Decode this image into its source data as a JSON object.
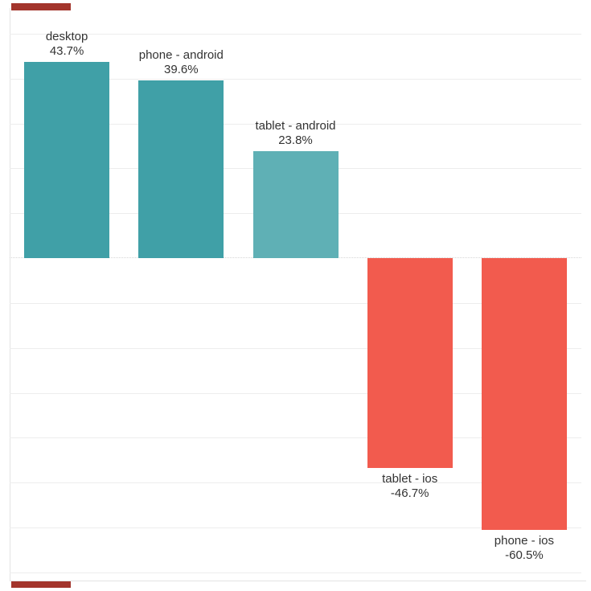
{
  "chart_data": {
    "type": "bar",
    "categories": [
      "desktop",
      "phone - android",
      "tablet - android",
      "tablet - ios",
      "phone - ios"
    ],
    "values": [
      43.7,
      39.6,
      23.8,
      -46.7,
      -60.5
    ],
    "value_labels": [
      "43.7%",
      "39.6%",
      "23.8%",
      "-46.7%",
      "-60.5%"
    ],
    "bar_colors": [
      "#40a0a7",
      "#40a0a7",
      "#5fb0b5",
      "#f25b4e",
      "#f25b4e"
    ],
    "positive_color": "#40a0a7",
    "positive_light_color": "#5fb0b5",
    "negative_color": "#f25b4e",
    "title": "",
    "xlabel": "",
    "ylabel": "",
    "ylim": [
      -72,
      55.7
    ],
    "gridline_step": 10,
    "grid": "on",
    "zero_line": "dotted",
    "legend": "none",
    "label_text_color": "#333333",
    "gridline_color": "#ededed",
    "axis_line_color": "#e4e4e4"
  },
  "decorations": {
    "corner_mark_color": "#a3352c"
  }
}
